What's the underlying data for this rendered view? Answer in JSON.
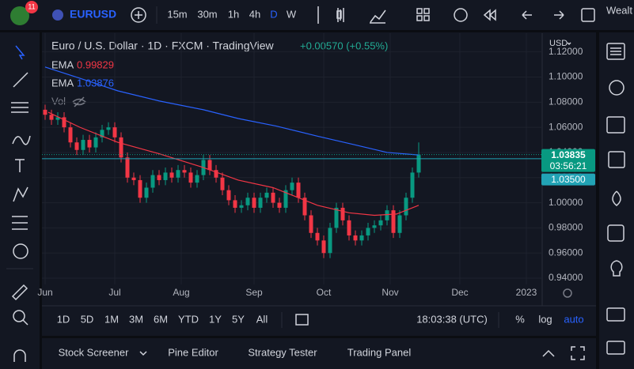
{
  "ui": {
    "badge": "11",
    "symbol": "EURUSD",
    "intervals": [
      "15m",
      "30m",
      "1h",
      "4h",
      "D",
      "W"
    ],
    "right_cut": "Wealt",
    "vol": "Vol",
    "currency": "USD",
    "ranges": [
      "1D",
      "5D",
      "1M",
      "3M",
      "6M",
      "YTD",
      "1Y",
      "5Y",
      "All"
    ],
    "clock": "18:03:38 (UTC)",
    "percent": "%",
    "log": "log",
    "auto": "auto",
    "footer": [
      "Stock Screener",
      "Pine Editor",
      "Strategy Tester",
      "Trading Panel"
    ]
  },
  "chart_data": {
    "type": "candlestick",
    "title": "Euro / U.S. Dollar · 1D · FXCM · TradingView",
    "change": "+0.00570 (+0.55%)",
    "grid": true,
    "xlim": [
      -1,
      157
    ],
    "xticks": [
      {
        "value": 0,
        "label": "Jun"
      },
      {
        "value": 22,
        "label": "Jul"
      },
      {
        "value": 43,
        "label": "Aug"
      },
      {
        "value": 66,
        "label": "Sep"
      },
      {
        "value": 88,
        "label": "Oct"
      },
      {
        "value": 109,
        "label": "Nov"
      },
      {
        "value": 131,
        "label": "Dec"
      },
      {
        "value": 152,
        "label": "2023"
      }
    ],
    "ylim": [
      0.935,
      1.133
    ],
    "yticks": [
      {
        "value": 0.94,
        "label": "0.94000"
      },
      {
        "value": 0.96,
        "label": "0.96000"
      },
      {
        "value": 0.98,
        "label": "0.98000"
      },
      {
        "value": 1.0,
        "label": "1.00000"
      },
      {
        "value": 1.02,
        "label": "1.02000"
      },
      {
        "value": 1.04,
        "label": "1.04000"
      },
      {
        "value": 1.06,
        "label": "1.06000"
      },
      {
        "value": 1.08,
        "label": "1.08000"
      },
      {
        "value": 1.1,
        "label": "1.10000"
      },
      {
        "value": 1.12,
        "label": "1.12000"
      }
    ],
    "candles": {
      "up_color": "#089981",
      "down_color": "#f23645",
      "x": [
        0,
        2,
        4,
        6,
        8,
        10,
        12,
        14,
        16,
        18,
        20,
        22,
        24,
        26,
        28,
        30,
        32,
        34,
        36,
        38,
        40,
        42,
        44,
        46,
        48,
        50,
        52,
        54,
        56,
        58,
        60,
        62,
        64,
        66,
        68,
        70,
        72,
        74,
        76,
        78,
        80,
        82,
        84,
        86,
        88,
        90,
        92,
        94,
        96,
        98,
        100,
        102,
        104,
        106,
        108,
        110,
        112,
        114,
        116,
        118
      ],
      "open": [
        1.074,
        1.07,
        1.066,
        1.068,
        1.06,
        1.048,
        1.042,
        1.05,
        1.044,
        1.052,
        1.058,
        1.06,
        1.052,
        1.036,
        1.02,
        1.018,
        1.004,
        1.012,
        1.022,
        1.018,
        1.024,
        1.02,
        1.026,
        1.024,
        1.016,
        1.022,
        1.034,
        1.026,
        1.02,
        1.01,
        1.002,
        0.996,
        0.998,
        1.004,
        0.996,
        1.004,
        1.008,
        1.0,
        0.996,
        1.01,
        1.016,
        1.004,
        0.99,
        0.976,
        0.97,
        0.96,
        0.98,
        0.996,
        0.986,
        0.974,
        0.97,
        0.974,
        0.98,
        0.982,
        0.986,
        0.994,
        0.976,
        0.99,
        1.004,
        1.024
      ],
      "high": [
        1.078,
        1.074,
        1.072,
        1.072,
        1.064,
        1.052,
        1.054,
        1.054,
        1.056,
        1.062,
        1.064,
        1.064,
        1.056,
        1.04,
        1.024,
        1.022,
        1.016,
        1.026,
        1.026,
        1.028,
        1.028,
        1.03,
        1.03,
        1.028,
        1.026,
        1.038,
        1.038,
        1.03,
        1.024,
        1.014,
        1.006,
        1.002,
        1.008,
        1.008,
        1.008,
        1.012,
        1.012,
        1.004,
        1.014,
        1.02,
        1.02,
        1.008,
        0.994,
        0.98,
        0.974,
        0.984,
        1.0,
        1.0,
        0.99,
        0.978,
        0.978,
        0.984,
        0.986,
        0.99,
        0.998,
        0.998,
        0.994,
        1.008,
        1.028,
        1.048
      ],
      "low": [
        1.066,
        1.062,
        1.062,
        1.056,
        1.044,
        1.038,
        1.038,
        1.04,
        1.04,
        1.048,
        1.054,
        1.048,
        1.032,
        1.016,
        1.014,
        1.0,
        1.0,
        1.008,
        1.014,
        1.014,
        1.016,
        1.016,
        1.02,
        1.012,
        1.012,
        1.018,
        1.022,
        1.016,
        1.006,
        0.998,
        0.992,
        0.992,
        0.994,
        0.992,
        0.992,
        1.0,
        0.996,
        0.992,
        0.992,
        1.006,
        1.0,
        0.986,
        0.972,
        0.966,
        0.956,
        0.956,
        0.976,
        0.982,
        0.97,
        0.966,
        0.966,
        0.97,
        0.976,
        0.978,
        0.982,
        0.972,
        0.972,
        0.986,
        1.0,
        1.02
      ],
      "close": [
        1.07,
        1.066,
        1.068,
        1.06,
        1.048,
        1.042,
        1.05,
        1.044,
        1.052,
        1.058,
        1.06,
        1.052,
        1.036,
        1.02,
        1.018,
        1.004,
        1.012,
        1.022,
        1.018,
        1.024,
        1.02,
        1.026,
        1.024,
        1.016,
        1.022,
        1.034,
        1.026,
        1.02,
        1.01,
        1.002,
        0.996,
        0.998,
        1.004,
        0.996,
        1.004,
        1.008,
        1.0,
        0.996,
        1.01,
        1.016,
        1.004,
        0.99,
        0.976,
        0.97,
        0.96,
        0.98,
        0.996,
        0.986,
        0.974,
        0.97,
        0.974,
        0.98,
        0.982,
        0.986,
        0.994,
        0.976,
        0.99,
        1.004,
        1.024,
        1.038
      ]
    },
    "series": [
      {
        "name": "EMA",
        "color": "#f23645",
        "last": 0.99829,
        "x": [
          1,
          11,
          23,
          36,
          50,
          61,
          72,
          80,
          86,
          96,
          104,
          111,
          118
        ],
        "values": [
          1.072,
          1.06,
          1.048,
          1.039,
          1.028,
          1.018,
          1.012,
          1.004,
          0.998,
          0.992,
          0.99,
          0.991,
          0.998
        ]
      },
      {
        "name": "EMA",
        "color": "#2962ff",
        "last": 1.03876,
        "x": [
          0,
          11,
          23,
          36,
          50,
          61,
          73,
          86,
          98,
          108,
          118
        ],
        "values": [
          1.108,
          1.099,
          1.089,
          1.081,
          1.074,
          1.067,
          1.061,
          1.053,
          1.046,
          1.04,
          1.038
        ]
      }
    ],
    "last_price": 1.03835,
    "countdown": "03:56:21",
    "price_line": {
      "value": 1.035,
      "label": "1.03500"
    }
  }
}
